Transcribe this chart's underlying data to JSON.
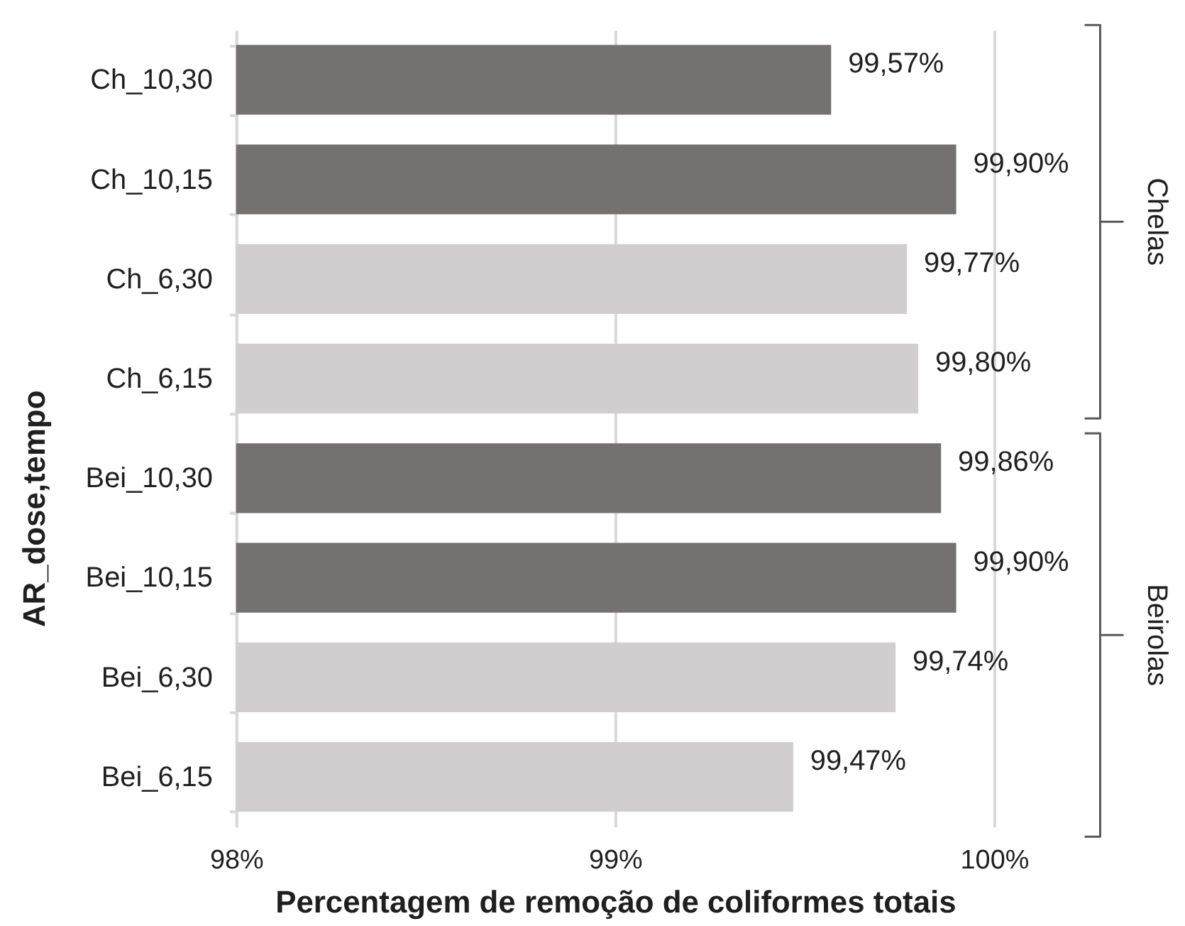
{
  "chart_data": {
    "type": "bar",
    "orientation": "horizontal",
    "xlabel": "Percentagem de remoção de coliformes totais",
    "ylabel": "AR_dose,tempo",
    "categories": [
      "Ch_10,30",
      "Ch_10,15",
      "Ch_6,30",
      "Ch_6,15",
      "Bei_10,30",
      "Bei_10,15",
      "Bei_6,30",
      "Bei_6,15"
    ],
    "values": [
      99.57,
      99.9,
      99.77,
      99.8,
      99.86,
      99.9,
      99.74,
      99.47
    ],
    "colors": [
      "#767171",
      "#767171",
      "#d0cece",
      "#d0cece",
      "#767171",
      "#767171",
      "#d0cece",
      "#d0cece"
    ],
    "value_labels": [
      "99,57%",
      "99,90%",
      "99,77%",
      "99,80%",
      "99,86%",
      "99,90%",
      "99,74%",
      "99,47%"
    ],
    "xlim": [
      98,
      100
    ],
    "xticks": [
      {
        "value": 98,
        "label": "98%"
      },
      {
        "value": 99,
        "label": "99%"
      },
      {
        "value": 100,
        "label": "100%"
      }
    ],
    "grid": "x",
    "annotations": [
      "Chelas",
      "Beirolas"
    ]
  }
}
